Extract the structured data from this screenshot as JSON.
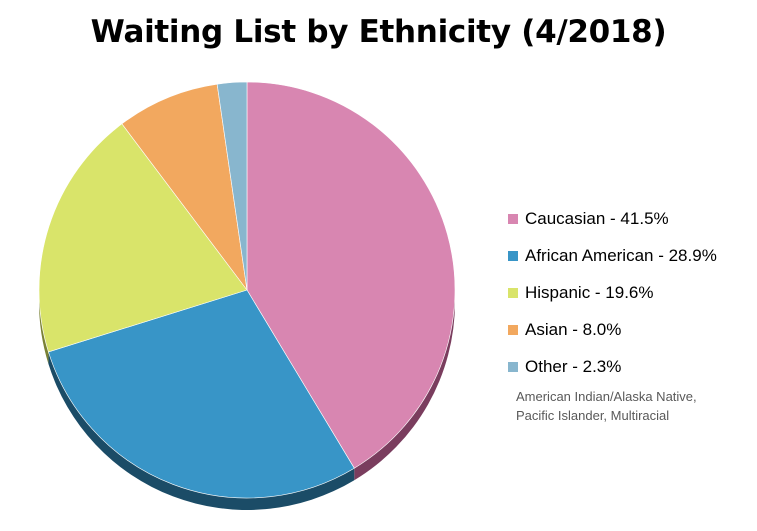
{
  "chart_data": {
    "type": "pie",
    "title": "Waiting List by Ethnicity (4/2018)",
    "slices": [
      {
        "label": "Caucasian - 41.5%",
        "value": 41.5,
        "color": "#D886B1",
        "shade": "#7A3D5E"
      },
      {
        "label": "African American - 28.9%",
        "value": 28.9,
        "color": "#3895C7",
        "shade": "#1B4C67"
      },
      {
        "label": "Hispanic - 19.6%",
        "value": 19.6,
        "color": "#D9E46A",
        "shade": "#7A8236"
      },
      {
        "label": "Asian - 8.0%",
        "value": 8.0,
        "color": "#F2A85F",
        "shade": "#8A5A2C"
      },
      {
        "label": "Other - 2.3%",
        "value": 2.3,
        "color": "#88B6CE",
        "shade": "#3F6477"
      }
    ],
    "legend_position": "right",
    "note_lines": [
      "American Indian/Alaska Native,",
      "Pacific Islander, Multiracial"
    ]
  }
}
